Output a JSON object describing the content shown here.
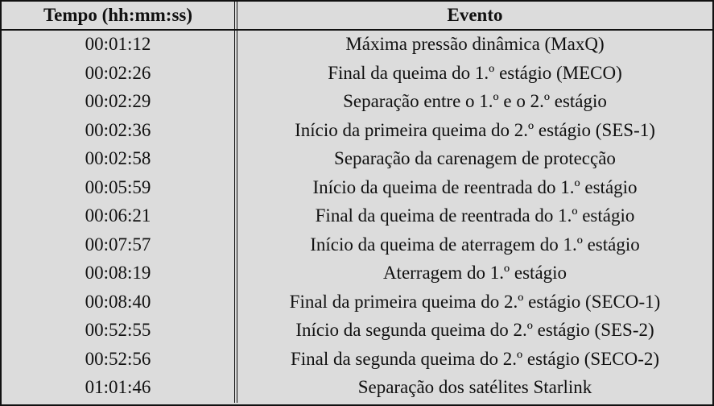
{
  "table": {
    "headers": [
      "Tempo (hh:mm:ss)",
      "Evento"
    ],
    "rows": [
      [
        "00:01:12",
        "Máxima pressão dinâmica (MaxQ)"
      ],
      [
        "00:02:26",
        "Final da queima do 1.º estágio (MECO)"
      ],
      [
        "00:02:29",
        "Separação entre o 1.º e o 2.º estágio"
      ],
      [
        "00:02:36",
        "Início da primeira queima do 2.º estágio (SES-1)"
      ],
      [
        "00:02:58",
        "Separação da carenagem de protecção"
      ],
      [
        "00:05:59",
        "Início da queima de reentrada do 1.º estágio"
      ],
      [
        "00:06:21",
        "Final da queima de reentrada do 1.º estágio"
      ],
      [
        "00:07:57",
        "Início da queima de aterragem do 1.º estágio"
      ],
      [
        "00:08:19",
        "Aterragem do 1.º estágio"
      ],
      [
        "00:08:40",
        "Final da primeira queima do 2.º estágio (SECO-1)"
      ],
      [
        "00:52:55",
        "Início da segunda queima do 2.º estágio (SES-2)"
      ],
      [
        "00:52:56",
        "Final da segunda queima do 2.º estágio (SECO-2)"
      ],
      [
        "01:01:46",
        "Separação dos satélites Starlink"
      ]
    ]
  }
}
